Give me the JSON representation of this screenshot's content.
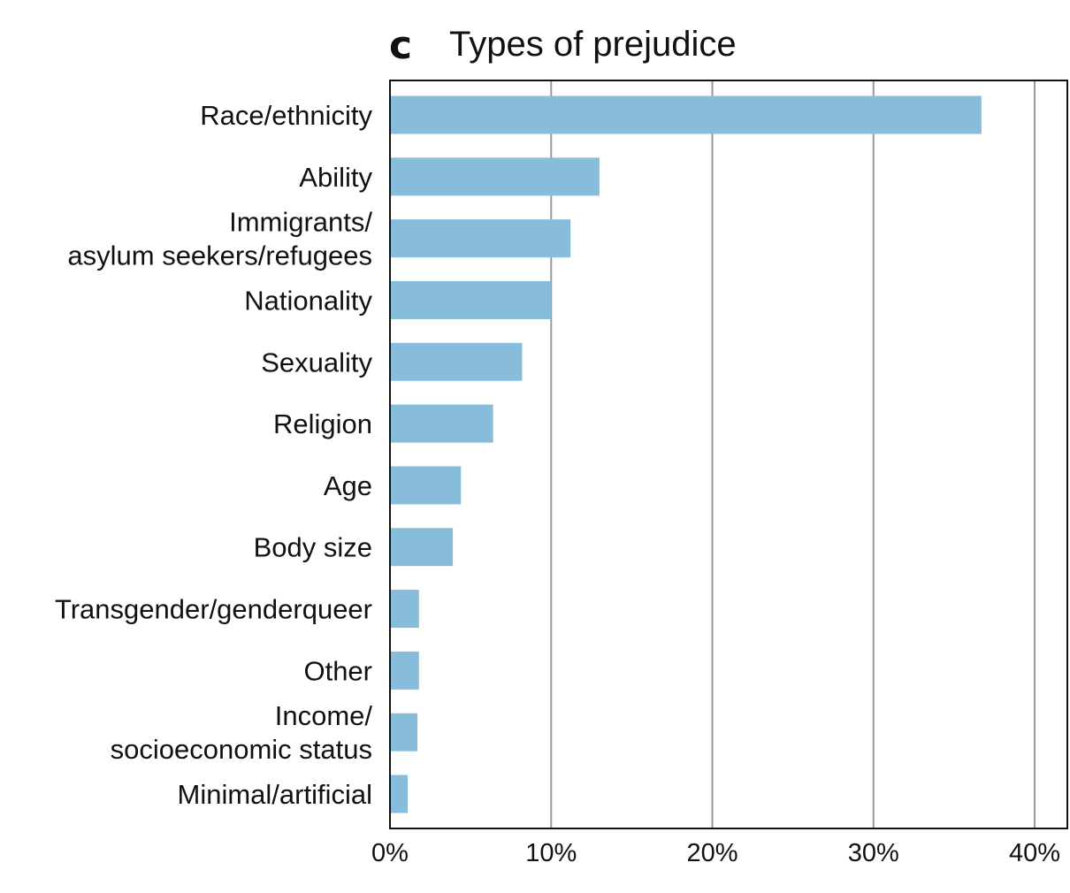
{
  "panel_label": "c",
  "chart_data": {
    "type": "bar",
    "orientation": "horizontal",
    "title": "Types of prejudice",
    "categories": [
      [
        "Race/ethnicity"
      ],
      [
        "Ability"
      ],
      [
        "Immigrants/",
        "asylum seekers/refugees"
      ],
      [
        "Nationality"
      ],
      [
        "Sexuality"
      ],
      [
        "Religion"
      ],
      [
        "Age"
      ],
      [
        "Body size"
      ],
      [
        "Transgender/genderqueer"
      ],
      [
        "Other"
      ],
      [
        "Income/",
        "socioeconomic status"
      ],
      [
        "Minimal/artificial"
      ]
    ],
    "values": [
      36.7,
      13.0,
      11.2,
      10.0,
      8.2,
      6.4,
      4.4,
      3.9,
      1.8,
      1.8,
      1.7,
      1.1
    ],
    "xlim": [
      0,
      40
    ],
    "xticks": [
      0,
      10,
      20,
      30,
      40
    ],
    "xtick_labels": [
      "0%",
      "10%",
      "20%",
      "30%",
      "40%"
    ],
    "grid": "vertical",
    "bar_color": "#87bddb",
    "grid_color": "#9a9a9a",
    "axis_color": "#111111"
  }
}
